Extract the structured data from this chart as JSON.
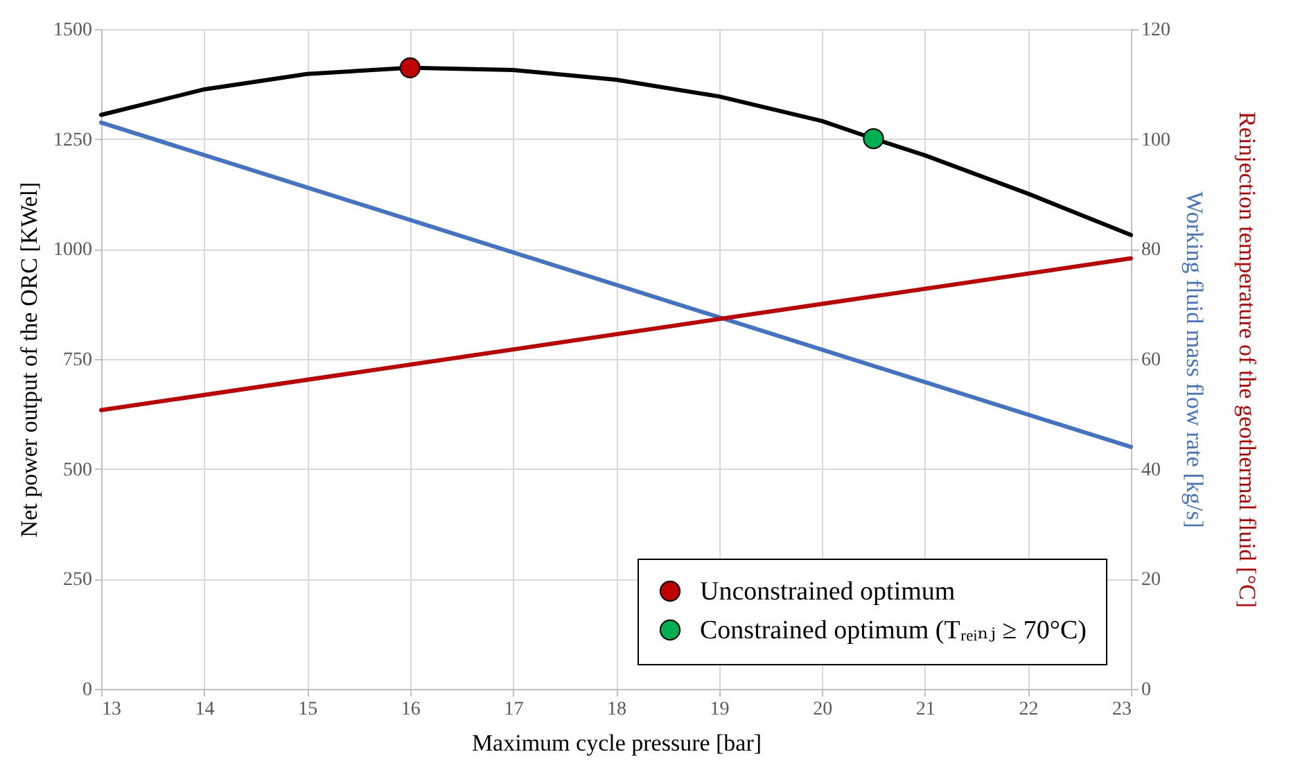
{
  "chart_data": {
    "type": "line",
    "xlabel": "Maximum cycle pressure [bar]",
    "ylabel": "Net power output of the ORC [KWel]",
    "y2label": "Working fluid mass flow rate [kg/s]",
    "annotations": [
      "Reinjection temperature of the geothermal fluid [°C]"
    ],
    "x": [
      13,
      14,
      15,
      16,
      17,
      18,
      19,
      20,
      20.5,
      21,
      22,
      23
    ],
    "series": [
      {
        "color": "#000000",
        "values": [
          1305,
          1363,
          1398,
          1412,
          1407,
          1385,
          1347,
          1291,
          1251,
          1213,
          1126,
          1032
        ]
      },
      {
        "color": "#4472c4",
        "axis": "y2",
        "x": [
          13,
          23
        ],
        "values": [
          103,
          44
        ]
      },
      {
        "color": "#c00000",
        "axis": "y2",
        "x": [
          13,
          23
        ],
        "values": [
          50.7,
          78.3
        ]
      },
      {
        "type": "scatter",
        "name": "Unconstrained optimum",
        "color": "#c00000",
        "x": [
          16
        ],
        "values": [
          1412
        ]
      },
      {
        "type": "scatter",
        "name": "Constrained optimum (Tᵣₑᵢₙⱼ ≥ 70°C)",
        "color": "#00b050",
        "x": [
          20.5
        ],
        "values": [
          1251
        ]
      }
    ],
    "xlim": [
      13,
      23
    ],
    "xticks": [
      13,
      14,
      15,
      16,
      17,
      18,
      19,
      20,
      21,
      22,
      23
    ],
    "ylim": [
      0,
      1500
    ],
    "yticks": [
      0,
      250,
      500,
      750,
      1000,
      1250,
      1500
    ],
    "y2lim": [
      0,
      120
    ],
    "y2ticks": [
      0,
      20,
      40,
      60,
      80,
      100,
      120
    ],
    "grid": true,
    "legend": "bottom right",
    "line_style": "solid"
  }
}
